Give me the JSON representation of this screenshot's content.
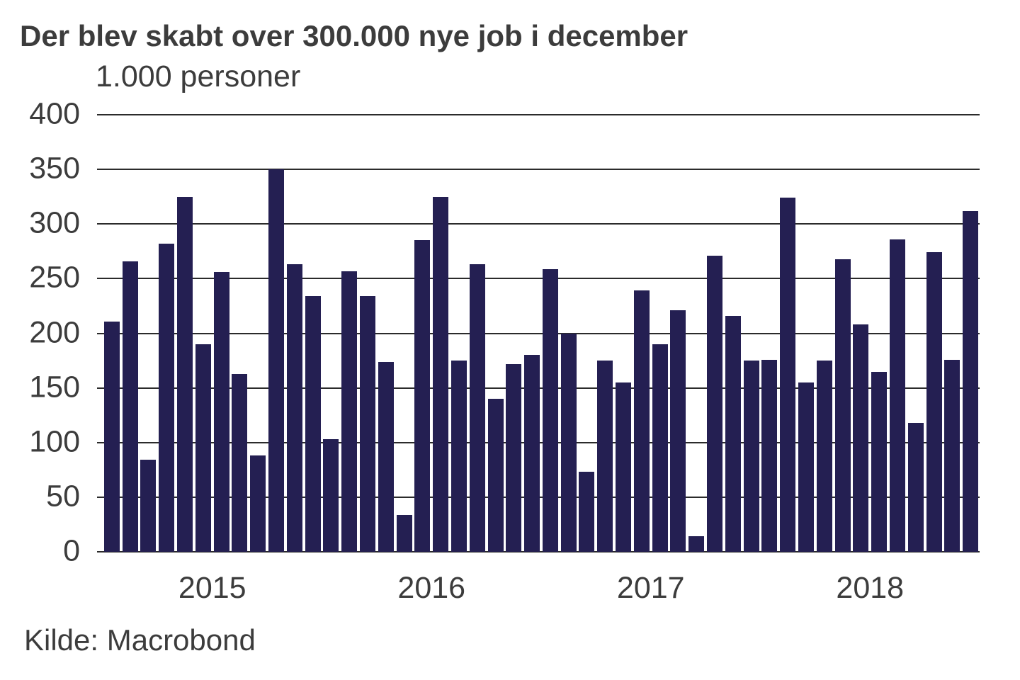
{
  "title": "Der blev skabt over 300.000 nye job i december",
  "subtitle": "1.000 personer",
  "source": "Kilde: Macrobond",
  "colors": {
    "bar": "#241f52",
    "text": "#3c3c3c",
    "gridline": "#2b2b2b",
    "background": "#ffffff"
  },
  "chart_data": {
    "type": "bar",
    "title": "Der blev skabt over 300.000 nye job i december",
    "ylabel": "1.000 personer",
    "xlabel": "",
    "ylim": [
      0,
      400
    ],
    "yticks": [
      0,
      50,
      100,
      150,
      200,
      250,
      300,
      350,
      400
    ],
    "grid": "horizontal",
    "legend_position": "none",
    "x_year_labels": [
      "2015",
      "2016",
      "2017",
      "2018"
    ],
    "frequency": "monthly",
    "values_by_year": {
      "2015": [
        211,
        266,
        84,
        282,
        325,
        190,
        256,
        163,
        88,
        350,
        263,
        234
      ],
      "2016": [
        103,
        257,
        234,
        174,
        34,
        285,
        325,
        175,
        263,
        140,
        172,
        180
      ],
      "2017": [
        259,
        200,
        73,
        175,
        155,
        239,
        190,
        221,
        14,
        271,
        216,
        175
      ],
      "2018": [
        176,
        324,
        155,
        175,
        268,
        208,
        165,
        286,
        118,
        274,
        176,
        312
      ]
    },
    "values": [
      211,
      266,
      84,
      282,
      325,
      190,
      256,
      163,
      88,
      350,
      263,
      234,
      103,
      257,
      234,
      174,
      34,
      285,
      325,
      175,
      263,
      140,
      172,
      180,
      259,
      200,
      73,
      175,
      155,
      239,
      190,
      221,
      14,
      271,
      216,
      175,
      176,
      324,
      155,
      175,
      268,
      208,
      165,
      286,
      118,
      274,
      176,
      312
    ]
  }
}
